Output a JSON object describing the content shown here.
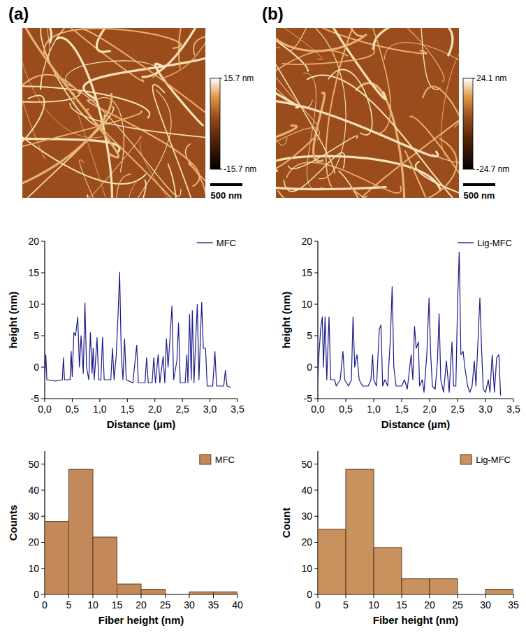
{
  "chart_data": [
    {
      "type": "image",
      "title": "(a)",
      "colorbar": {
        "range": [
          -15.7,
          15.7
        ],
        "ticks": [
          {
            "value": -15.7,
            "label": "-15.7 nm"
          },
          {
            "value": 15.7,
            "label": "15.7 nm"
          }
        ]
      },
      "annotations": [
        "500 nm"
      ]
    },
    {
      "type": "image",
      "title": "(b)",
      "colorbar": {
        "range": [
          -24.7,
          24.1
        ],
        "ticks": [
          {
            "value": -24.7,
            "label": "-24.7 nm"
          },
          {
            "value": 24.1,
            "label": "24.1 nm"
          }
        ]
      },
      "annotations": [
        "500 nm"
      ]
    },
    {
      "type": "line",
      "x_label": "Distance (µm)",
      "y_label": "height (nm)",
      "legend": "upper right",
      "x": [
        0,
        0.02,
        0.04,
        0.2,
        0.32,
        0.34,
        0.36,
        0.46,
        0.48,
        0.5,
        0.53,
        0.56,
        0.6,
        0.63,
        0.66,
        0.7,
        0.73,
        0.76,
        0.8,
        0.83,
        0.86,
        0.88,
        0.9,
        0.95,
        0.98,
        1.02,
        1.05,
        1.08,
        1.2,
        1.23,
        1.26,
        1.3,
        1.33,
        1.36,
        1.39,
        1.42,
        1.45,
        1.48,
        1.6,
        1.67,
        1.7,
        1.82,
        1.85,
        1.88,
        1.95,
        1.98,
        2.01,
        2.06,
        2.09,
        2.15,
        2.18,
        2.21,
        2.24,
        2.27,
        2.31,
        2.34,
        2.4,
        2.43,
        2.46,
        2.55,
        2.58,
        2.6,
        2.63,
        2.66,
        2.68,
        2.71,
        2.74,
        2.77,
        2.8,
        2.85,
        2.88,
        2.92,
        2.95,
        3.05,
        3.09,
        3.12,
        3.25,
        3.28,
        3.31,
        3.38
      ],
      "series": [
        {
          "name": "MFC",
          "color": "#1c1c8a",
          "values": [
            -1.8,
            2,
            -2,
            -2.2,
            -2,
            1.5,
            -2,
            -2,
            2.5,
            -1.5,
            5.5,
            5,
            8,
            0,
            5,
            -1,
            10.2,
            0,
            -2,
            5.5,
            -1,
            3,
            -2,
            4.7,
            -2,
            -2,
            4.7,
            -2,
            -2,
            3,
            -2,
            2,
            8,
            15.1,
            2,
            -2,
            4.5,
            -2,
            -2.5,
            3.5,
            -2.5,
            -2.5,
            1.5,
            -2.5,
            -2.5,
            1.5,
            -2.5,
            2,
            -2.5,
            1.7,
            -2.5,
            4.5,
            0,
            4,
            9.7,
            -2,
            1,
            7,
            -2.5,
            -2.5,
            2,
            -2.5,
            8.4,
            -2,
            9,
            -2.5,
            4,
            10,
            -2,
            10.3,
            3,
            3,
            -3,
            -3,
            2.5,
            -3,
            -3,
            -0.5,
            -3,
            -3.2
          ]
        }
      ],
      "xlim": [
        0,
        3.5
      ],
      "xticks": [
        {
          "value": 0,
          "label": "0,0"
        },
        {
          "value": 0.5,
          "label": "0,5"
        },
        {
          "value": 1,
          "label": "1,0"
        },
        {
          "value": 1.5,
          "label": "1,5"
        },
        {
          "value": 2,
          "label": "2,0"
        },
        {
          "value": 2.5,
          "label": "2,5"
        },
        {
          "value": 3,
          "label": "3,0"
        },
        {
          "value": 3.5,
          "label": "3,5"
        }
      ],
      "ylim": [
        -5,
        20
      ],
      "yticks": [
        -5,
        0,
        5,
        10,
        15,
        20
      ]
    },
    {
      "type": "line",
      "x_label": "Distance (µm)",
      "y_label": "height (nm)",
      "legend": "upper right",
      "x": [
        0,
        0.02,
        0.05,
        0.08,
        0.1,
        0.13,
        0.16,
        0.2,
        0.23,
        0.3,
        0.33,
        0.4,
        0.45,
        0.48,
        0.55,
        0.6,
        0.63,
        0.66,
        0.7,
        0.74,
        0.8,
        0.9,
        0.95,
        0.98,
        1.0,
        1.05,
        1.1,
        1.13,
        1.16,
        1.2,
        1.25,
        1.3,
        1.33,
        1.36,
        1.4,
        1.5,
        1.55,
        1.6,
        1.67,
        1.7,
        1.73,
        1.76,
        1.8,
        1.82,
        1.87,
        1.9,
        1.95,
        1.99,
        2.02,
        2.05,
        2.1,
        2.14,
        2.17,
        2.2,
        2.25,
        2.3,
        2.35,
        2.4,
        2.43,
        2.47,
        2.5,
        2.53,
        2.56,
        2.6,
        2.63,
        2.68,
        2.72,
        2.76,
        2.8,
        2.83,
        2.87,
        2.9,
        2.93,
        2.96,
        3.0,
        3.05,
        3.08,
        3.12,
        3.16,
        3.2,
        3.24,
        3.27
      ],
      "series": [
        {
          "name": "Lig-MFC",
          "color": "#1c1c8a",
          "values": [
            -2,
            2,
            6,
            8,
            0,
            8,
            -2,
            8,
            -2,
            -2,
            -3,
            -2,
            2.5,
            -2,
            -3,
            -2,
            8,
            0,
            2,
            -2,
            -3,
            -3,
            -2,
            2,
            -2,
            -3,
            6,
            6.7,
            -3,
            -2,
            -3,
            5,
            12.8,
            0,
            -3,
            -3,
            -2,
            -3.5,
            2,
            -2,
            6.5,
            3,
            4,
            -3,
            -2,
            -4,
            2,
            11,
            2,
            -3,
            -3.5,
            1,
            8.5,
            -2,
            -4,
            1,
            -4,
            4,
            -3,
            -3,
            10,
            18.3,
            2,
            2.5,
            0,
            -3,
            -4,
            -3,
            1,
            -3,
            5,
            11,
            3,
            -3.5,
            -4,
            -2,
            -4,
            2,
            -4,
            1.5,
            2,
            -4.5
          ]
        }
      ],
      "xlim": [
        0,
        3.5
      ],
      "xticks": [
        {
          "value": 0,
          "label": "0,0"
        },
        {
          "value": 0.5,
          "label": "0,5"
        },
        {
          "value": 1,
          "label": "1,0"
        },
        {
          "value": 1.5,
          "label": "1,5"
        },
        {
          "value": 2,
          "label": "2,0"
        },
        {
          "value": 2.5,
          "label": "2,5"
        },
        {
          "value": 3,
          "label": "3,0"
        },
        {
          "value": 3.5,
          "label": "3,5"
        }
      ],
      "ylim": [
        -5,
        20
      ],
      "yticks": [
        -5,
        0,
        5,
        10,
        15,
        20
      ]
    },
    {
      "type": "histogram",
      "x_label": "Fiber height (nm)",
      "y_label": "Counts",
      "legend": "upper right",
      "bins": [
        0,
        5,
        10,
        15,
        20,
        25,
        30,
        35,
        40
      ],
      "series": [
        {
          "name": "MFC",
          "color": "#c4895a",
          "values": [
            28,
            48,
            22,
            4,
            2,
            0,
            1,
            1
          ]
        }
      ],
      "xlim": [
        0,
        40
      ],
      "xticks": [
        0,
        5,
        10,
        15,
        20,
        25,
        30,
        35,
        40
      ],
      "ylim": [
        0,
        55
      ],
      "yticks": [
        0,
        10,
        20,
        30,
        40,
        50
      ]
    },
    {
      "type": "histogram",
      "x_label": "Fiber height (nm)",
      "y_label": "Count",
      "legend": "upper right",
      "bins": [
        0,
        5,
        10,
        15,
        20,
        25,
        30,
        35
      ],
      "series": [
        {
          "name": "Lig-MFC",
          "color": "#c8925e",
          "values": [
            25,
            48,
            18,
            6,
            6,
            0,
            2
          ]
        }
      ],
      "xlim": [
        0,
        35
      ],
      "xticks": [
        0,
        5,
        10,
        15,
        20,
        25,
        30,
        35
      ],
      "ylim": [
        0,
        55
      ],
      "yticks": [
        0,
        10,
        20,
        30,
        40,
        50
      ]
    }
  ]
}
